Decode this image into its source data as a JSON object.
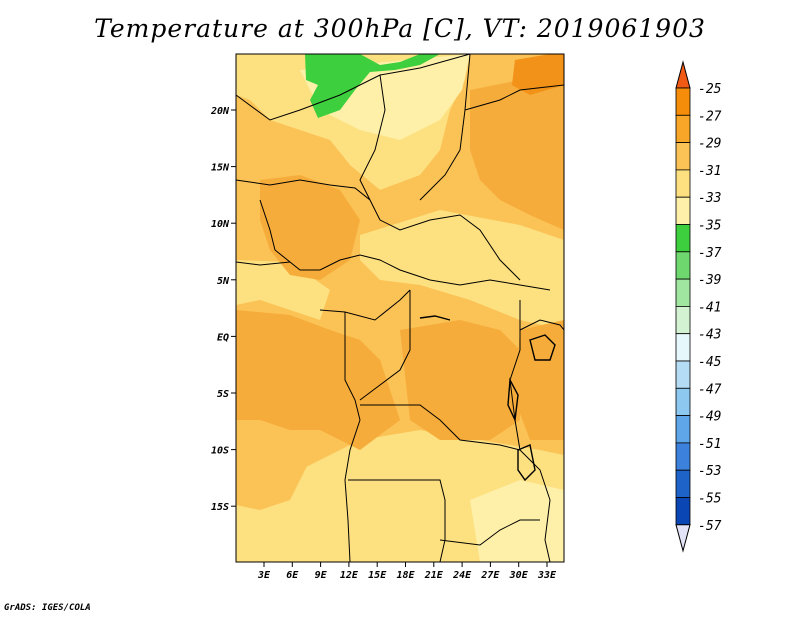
{
  "title": "Temperature at 300hPa [C], VT: 2019061903",
  "credit": "GrADS: IGES/COLA",
  "map": {
    "lat_labels": [
      "20N",
      "15N",
      "10N",
      "5N",
      "EQ",
      "5S",
      "10S",
      "15S"
    ],
    "lon_labels": [
      "3E",
      "6E",
      "9E",
      "12E",
      "15E",
      "18E",
      "21E",
      "24E",
      "27E",
      "30E",
      "33E"
    ],
    "fill_colors": {
      "lighter": "#fef0a8",
      "light": "#fde080",
      "medium": "#fbc256",
      "dark": "#f6ac3a",
      "orange": "#f29218",
      "green": "#3ecf3e"
    }
  },
  "colorbar": {
    "labels": [
      "-25",
      "-27",
      "-29",
      "-31",
      "-33",
      "-35",
      "-37",
      "-39",
      "-41",
      "-43",
      "-45",
      "-47",
      "-49",
      "-51",
      "-53",
      "-55",
      "-57"
    ],
    "colors": [
      "#f05a14",
      "#f58c0a",
      "#f8a628",
      "#fbc256",
      "#fde080",
      "#fef0a8",
      "#3ecf3e",
      "#6ed86e",
      "#a0e6a0",
      "#d2f2d2",
      "#e6f8fc",
      "#b4dcf4",
      "#8cc8f0",
      "#5ea6e8",
      "#3c82dc",
      "#1e64c8",
      "#0a46b4",
      "#0a1480"
    ],
    "end_colors": {
      "top": "#f05a14",
      "bottom": "#e4e4f8"
    }
  }
}
